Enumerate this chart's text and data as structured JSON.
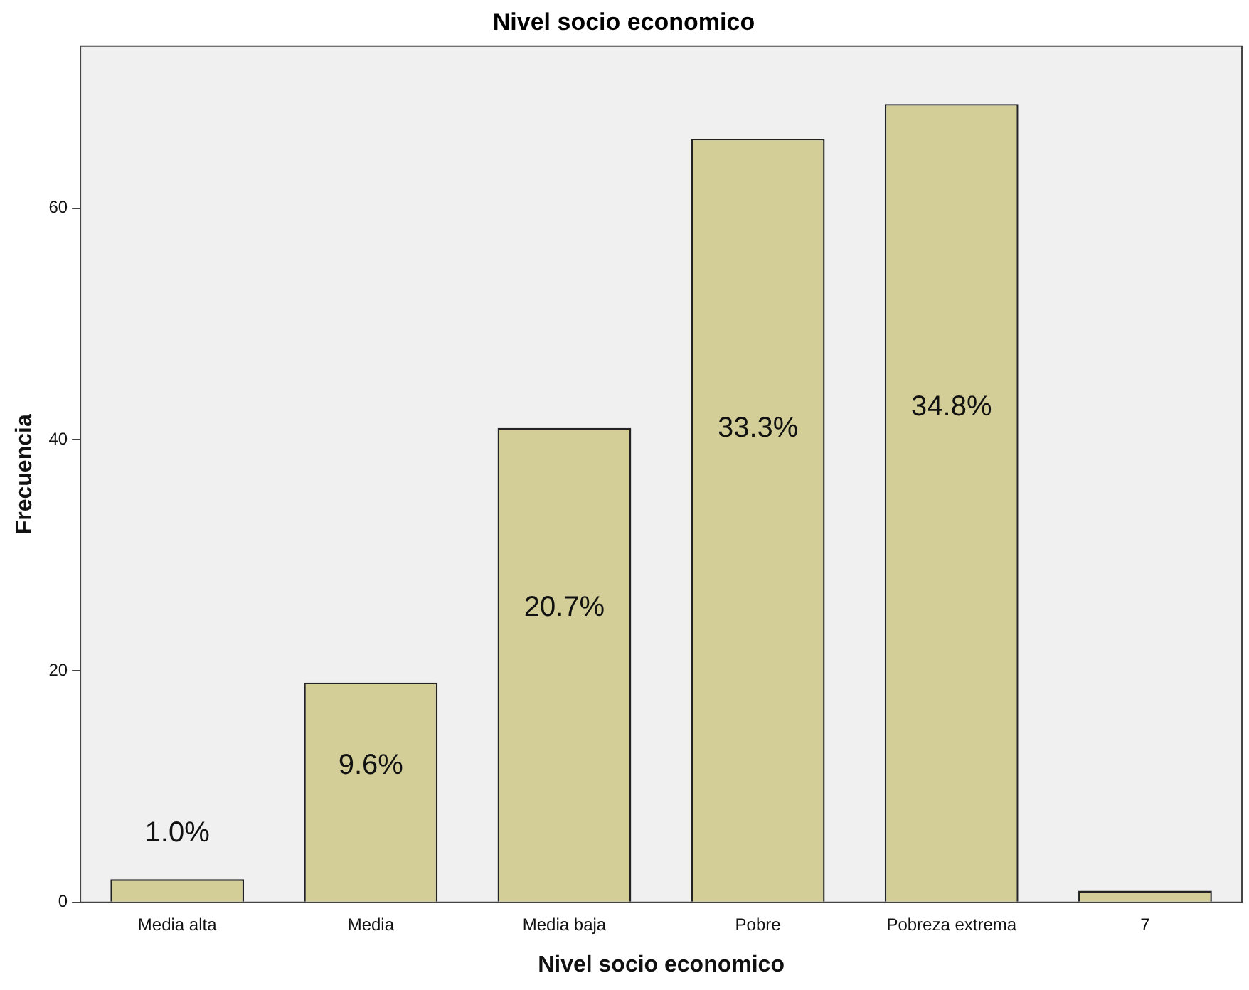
{
  "chart_data": {
    "type": "bar",
    "title": "Nivel socio economico",
    "xlabel": "Nivel socio economico",
    "ylabel": "Frecuencia",
    "categories": [
      "Media alta",
      "Media",
      "Media baja",
      "Pobre",
      "Pobreza extrema",
      "7"
    ],
    "values": [
      2,
      19,
      41,
      66,
      69,
      1
    ],
    "annotations": [
      "1.0%",
      "9.6%",
      "20.7%",
      "33.3%",
      "34.8%"
    ],
    "color": "#d3ce97",
    "ylim": [
      0,
      74
    ],
    "yticks": [
      0,
      20,
      40,
      60
    ],
    "grid": false,
    "legend": false
  }
}
